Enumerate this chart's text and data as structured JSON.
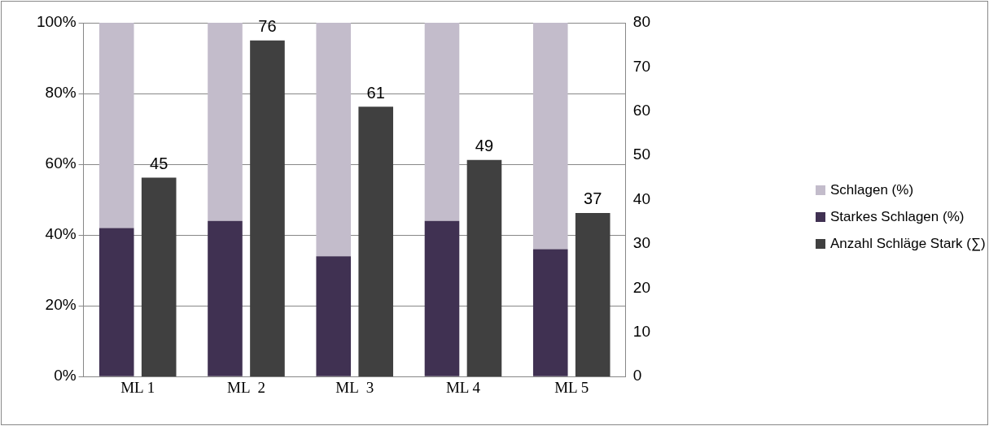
{
  "chart_data": {
    "type": "bar",
    "stacked": true,
    "categories": [
      "ML 1",
      "ML  2",
      "ML  3",
      "ML 4",
      "ML 5"
    ],
    "series": [
      {
        "name": "Starkes Schlagen (%)",
        "color": "#403152",
        "values": [
          42,
          44,
          34,
          44,
          36
        ]
      },
      {
        "name": "Schlagen (%)",
        "color": "#c3bccb",
        "values": [
          58,
          56,
          66,
          56,
          64
        ]
      },
      {
        "name": "Anzahl Schläge Stark (∑)",
        "color": "#404040",
        "axis": "y2",
        "values": [
          45,
          76,
          61,
          49,
          37
        ],
        "value_labels": [
          "45",
          "76",
          "61",
          "49",
          "37"
        ]
      }
    ],
    "ylim": [
      0,
      100
    ],
    "yticks": [
      {
        "value": 0,
        "label": "0%"
      },
      {
        "value": 20,
        "label": "20%"
      },
      {
        "value": 40,
        "label": "40%"
      },
      {
        "value": 60,
        "label": "60%"
      },
      {
        "value": 80,
        "label": "80%"
      },
      {
        "value": 100,
        "label": "100%"
      }
    ],
    "y2lim": [
      0,
      80
    ],
    "y2ticks": [
      0,
      10,
      20,
      30,
      40,
      50,
      60,
      70,
      80
    ],
    "grid": "y",
    "legend": "right"
  }
}
